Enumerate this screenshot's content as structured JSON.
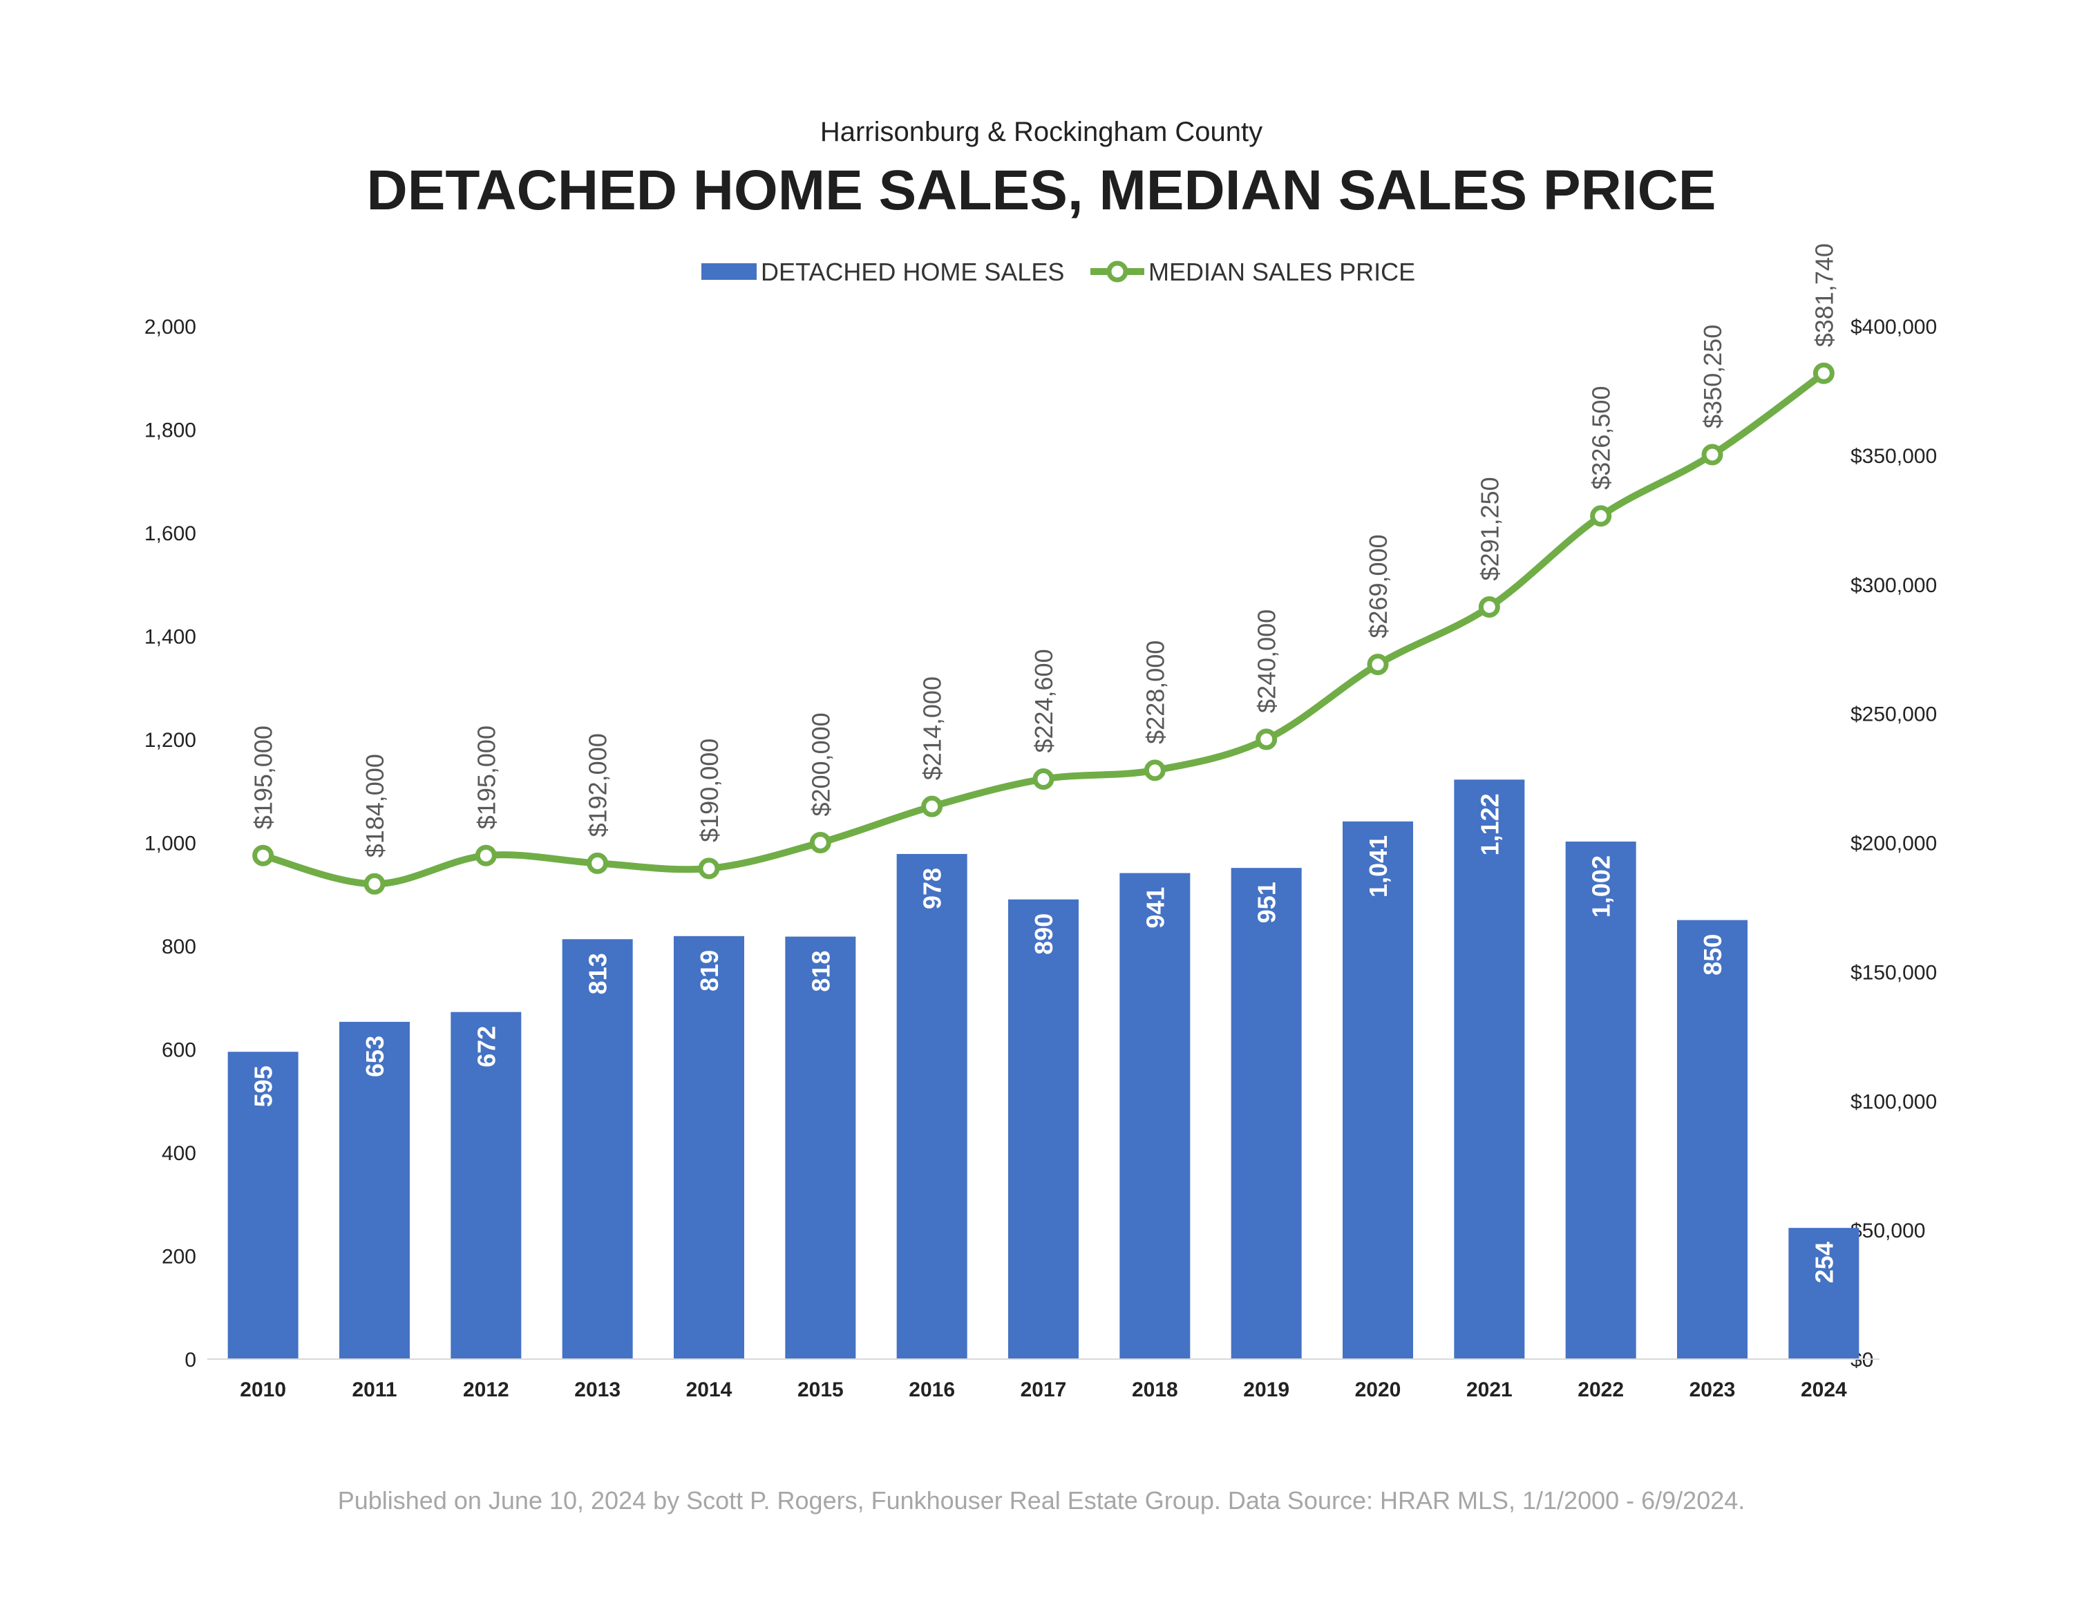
{
  "subtitle": "Harrisonburg & Rockingham County",
  "title": "DETACHED HOME SALES, MEDIAN SALES PRICE",
  "footer": "Published on June 10, 2024 by Scott P. Rogers, Funkhouser Real Estate Group. Data Source: HRAR MLS, 1/1/2000 - 6/9/2024.",
  "colors": {
    "bars": "#4472C4",
    "line": "#70AD47",
    "marker_fill": "#ffffff"
  },
  "chart_data": {
    "type": "bar",
    "categories": [
      "2010",
      "2011",
      "2012",
      "2013",
      "2014",
      "2015",
      "2016",
      "2017",
      "2018",
      "2019",
      "2020",
      "2021",
      "2022",
      "2023",
      "2024"
    ],
    "series": [
      {
        "name": "DETACHED HOME SALES",
        "type": "bar",
        "axis": "left",
        "values": [
          595,
          653,
          672,
          813,
          819,
          818,
          978,
          890,
          941,
          951,
          1041,
          1122,
          1002,
          850,
          254
        ],
        "labels": [
          "595",
          "653",
          "672",
          "813",
          "819",
          "818",
          "978",
          "890",
          "941",
          "951",
          "1,041",
          "1,122",
          "1,002",
          "850",
          "254"
        ]
      },
      {
        "name": "MEDIAN SALES PRICE",
        "type": "line",
        "axis": "right",
        "values": [
          195000,
          184000,
          195000,
          192000,
          190000,
          200000,
          214000,
          224600,
          228000,
          240000,
          269000,
          291250,
          326500,
          350250,
          381740
        ],
        "labels": [
          "$195,000",
          "$184,000",
          "$195,000",
          "$192,000",
          "$190,000",
          "$200,000",
          "$214,000",
          "$224,600",
          "$228,000",
          "$240,000",
          "$269,000",
          "$291,250",
          "$326,500",
          "$350,250",
          "$381,740"
        ]
      }
    ],
    "y_left": {
      "range": [
        0,
        2000
      ],
      "ticks": [
        "0",
        "200",
        "400",
        "600",
        "800",
        "1,000",
        "1,200",
        "1,400",
        "1,600",
        "1,800",
        "2,000"
      ]
    },
    "y_right": {
      "range": [
        0,
        400000
      ],
      "ticks": [
        "$0",
        "$50,000",
        "$100,000",
        "$150,000",
        "$200,000",
        "$250,000",
        "$300,000",
        "$350,000",
        "$400,000"
      ]
    },
    "legend_position": "top-center",
    "grid": false
  }
}
